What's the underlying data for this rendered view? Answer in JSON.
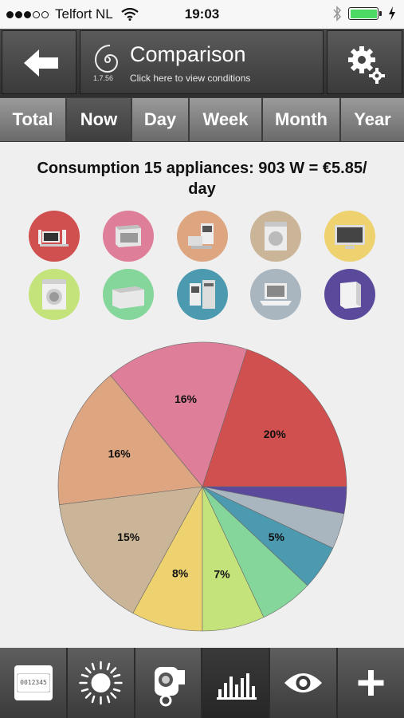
{
  "status_bar": {
    "carrier": "Telfort NL",
    "time": "19:03",
    "signal_dots_filled": 3,
    "signal_dots_total": 5,
    "battery_level": 1.0,
    "icons": [
      "wifi-icon",
      "bluetooth-icon",
      "battery-icon",
      "charging-icon"
    ]
  },
  "header": {
    "back_icon": "arrow-left-icon",
    "title": "Comparison",
    "subtitle": "Click here to view conditions",
    "version": "1.7.56",
    "logo_icon": "spiral-logo-icon",
    "settings_icon": "gears-icon"
  },
  "tabs": [
    {
      "label": "Total",
      "active": false
    },
    {
      "label": "Now",
      "active": true
    },
    {
      "label": "Day",
      "active": false
    },
    {
      "label": "Week",
      "active": false
    },
    {
      "label": "Month",
      "active": false
    },
    {
      "label": "Year",
      "active": false
    }
  ],
  "summary": {
    "line1": "Consumption 15 appliances: 903 W = €5.85/",
    "line2": "day"
  },
  "appliances": [
    {
      "name": "audio-video",
      "color": "#d04f4f"
    },
    {
      "name": "dishwasher",
      "color": "#de7e98"
    },
    {
      "name": "kitchen",
      "color": "#dea581"
    },
    {
      "name": "dryer",
      "color": "#cbb598"
    },
    {
      "name": "television",
      "color": "#edd26f"
    },
    {
      "name": "washing-machine",
      "color": "#c4e37a"
    },
    {
      "name": "freezer",
      "color": "#85d69a"
    },
    {
      "name": "computer",
      "color": "#4c9aaf"
    },
    {
      "name": "laptop",
      "color": "#a9b6c0"
    },
    {
      "name": "fridge",
      "color": "#5b4a9c"
    }
  ],
  "chart_data": {
    "type": "pie",
    "title": "",
    "slices": [
      {
        "value": 20,
        "label": "20%",
        "color": "#d04f4f"
      },
      {
        "value": 16,
        "label": "16%",
        "color": "#de7e98"
      },
      {
        "value": 16,
        "label": "16%",
        "color": "#dea581"
      },
      {
        "value": 15,
        "label": "15%",
        "color": "#cbb598"
      },
      {
        "value": 8,
        "label": "8%",
        "color": "#edd26f"
      },
      {
        "value": 7,
        "label": "7%",
        "color": "#c4e37a"
      },
      {
        "value": 6,
        "label": "",
        "color": "#85d69a"
      },
      {
        "value": 5,
        "label": "5%",
        "color": "#4c9aaf"
      },
      {
        "value": 4,
        "label": "",
        "color": "#a9b6c0"
      },
      {
        "value": 3,
        "label": "",
        "color": "#5b4a9c"
      }
    ]
  },
  "bottom_nav": [
    {
      "name": "meter-icon",
      "text": "0012345",
      "active": false
    },
    {
      "name": "sun-icon",
      "active": false
    },
    {
      "name": "appliance-plug-icon",
      "active": false
    },
    {
      "name": "bar-chart-icon",
      "active": true
    },
    {
      "name": "eye-icon",
      "active": false
    },
    {
      "name": "plus-icon",
      "active": false
    }
  ]
}
